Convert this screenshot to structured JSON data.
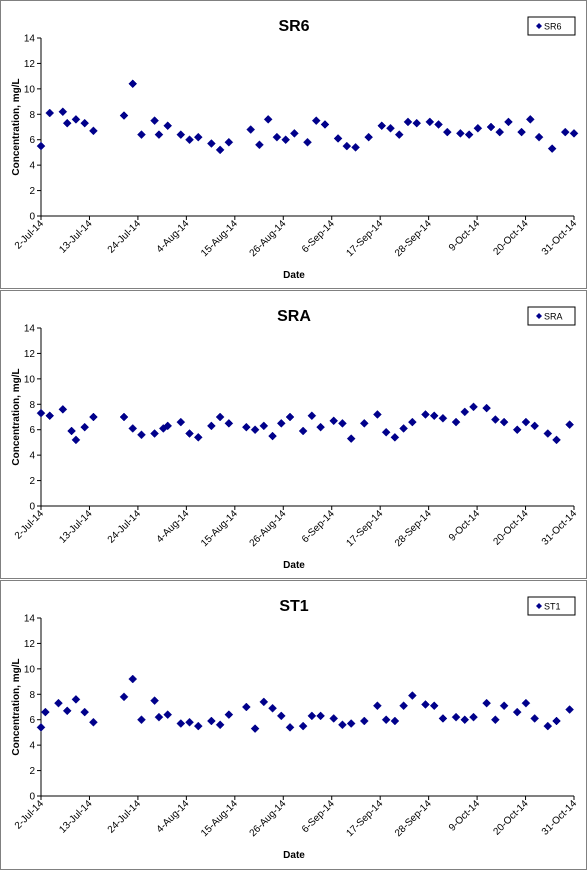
{
  "chart_data": [
    {
      "type": "scatter",
      "title": "SR6",
      "xlabel": "Date",
      "ylabel": "Concentration, mg/L",
      "ylim": [
        0,
        14
      ],
      "yticks": [
        0,
        2,
        4,
        6,
        8,
        10,
        12,
        14
      ],
      "xlim": [
        "2014-07-02",
        "2014-11-01"
      ],
      "xtick_labels": [
        "2-Jul-14",
        "13-Jul-14",
        "24-Jul-14",
        "4-Aug-14",
        "15-Aug-14",
        "26-Aug-14",
        "6-Sep-14",
        "17-Sep-14",
        "28-Sep-14",
        "9-Oct-14",
        "20-Oct-14",
        "31-Oct-14"
      ],
      "grid": false,
      "legend": "top-right",
      "marker_color": "#00008b",
      "series": [
        {
          "name": "SR6",
          "points": [
            [
              "2014-07-02",
              5.5
            ],
            [
              "2014-07-04",
              8.1
            ],
            [
              "2014-07-07",
              8.2
            ],
            [
              "2014-07-08",
              7.3
            ],
            [
              "2014-07-10",
              7.6
            ],
            [
              "2014-07-12",
              7.3
            ],
            [
              "2014-07-14",
              6.7
            ],
            [
              "2014-07-21",
              7.9
            ],
            [
              "2014-07-23",
              10.4
            ],
            [
              "2014-07-25",
              6.4
            ],
            [
              "2014-07-28",
              7.5
            ],
            [
              "2014-07-29",
              6.4
            ],
            [
              "2014-07-31",
              7.1
            ],
            [
              "2014-08-03",
              6.4
            ],
            [
              "2014-08-05",
              6.0
            ],
            [
              "2014-08-07",
              6.2
            ],
            [
              "2014-08-10",
              5.7
            ],
            [
              "2014-08-12",
              5.2
            ],
            [
              "2014-08-14",
              5.8
            ],
            [
              "2014-08-19",
              6.8
            ],
            [
              "2014-08-21",
              5.6
            ],
            [
              "2014-08-23",
              7.6
            ],
            [
              "2014-08-25",
              6.2
            ],
            [
              "2014-08-27",
              6.0
            ],
            [
              "2014-08-29",
              6.5
            ],
            [
              "2014-09-01",
              5.8
            ],
            [
              "2014-09-03",
              7.5
            ],
            [
              "2014-09-05",
              7.2
            ],
            [
              "2014-09-08",
              6.1
            ],
            [
              "2014-09-10",
              5.5
            ],
            [
              "2014-09-12",
              5.4
            ],
            [
              "2014-09-15",
              6.2
            ],
            [
              "2014-09-18",
              7.1
            ],
            [
              "2014-09-20",
              6.9
            ],
            [
              "2014-09-22",
              6.4
            ],
            [
              "2014-09-24",
              7.4
            ],
            [
              "2014-09-26",
              7.3
            ],
            [
              "2014-09-29",
              7.4
            ],
            [
              "2014-10-01",
              7.2
            ],
            [
              "2014-10-03",
              6.6
            ],
            [
              "2014-10-06",
              6.5
            ],
            [
              "2014-10-08",
              6.4
            ],
            [
              "2014-10-10",
              6.9
            ],
            [
              "2014-10-13",
              7.0
            ],
            [
              "2014-10-15",
              6.6
            ],
            [
              "2014-10-17",
              7.4
            ],
            [
              "2014-10-20",
              6.6
            ],
            [
              "2014-10-22",
              7.6
            ],
            [
              "2014-10-24",
              6.2
            ],
            [
              "2014-10-27",
              5.3
            ],
            [
              "2014-10-30",
              6.6
            ],
            [
              "2014-11-01",
              6.5
            ]
          ]
        }
      ]
    },
    {
      "type": "scatter",
      "title": "SRA",
      "xlabel": "Date",
      "ylabel": "Concentration, mg/L",
      "ylim": [
        0,
        14
      ],
      "yticks": [
        0,
        2,
        4,
        6,
        8,
        10,
        12,
        14
      ],
      "xlim": [
        "2014-07-02",
        "2014-11-01"
      ],
      "xtick_labels": [
        "2-Jul-14",
        "13-Jul-14",
        "24-Jul-14",
        "4-Aug-14",
        "15-Aug-14",
        "26-Aug-14",
        "6-Sep-14",
        "17-Sep-14",
        "28-Sep-14",
        "9-Oct-14",
        "20-Oct-14",
        "31-Oct-14"
      ],
      "grid": false,
      "legend": "top-right",
      "marker_color": "#00008b",
      "series": [
        {
          "name": "SRA",
          "points": [
            [
              "2014-07-02",
              7.3
            ],
            [
              "2014-07-04",
              7.1
            ],
            [
              "2014-07-07",
              7.6
            ],
            [
              "2014-07-09",
              5.9
            ],
            [
              "2014-07-10",
              5.2
            ],
            [
              "2014-07-12",
              6.2
            ],
            [
              "2014-07-14",
              7.0
            ],
            [
              "2014-07-21",
              7.0
            ],
            [
              "2014-07-23",
              6.1
            ],
            [
              "2014-07-25",
              5.6
            ],
            [
              "2014-07-28",
              5.7
            ],
            [
              "2014-07-30",
              6.1
            ],
            [
              "2014-07-31",
              6.3
            ],
            [
              "2014-08-03",
              6.6
            ],
            [
              "2014-08-05",
              5.7
            ],
            [
              "2014-08-07",
              5.4
            ],
            [
              "2014-08-10",
              6.3
            ],
            [
              "2014-08-12",
              7.0
            ],
            [
              "2014-08-14",
              6.5
            ],
            [
              "2014-08-18",
              6.2
            ],
            [
              "2014-08-20",
              6.0
            ],
            [
              "2014-08-22",
              6.3
            ],
            [
              "2014-08-24",
              5.5
            ],
            [
              "2014-08-26",
              6.5
            ],
            [
              "2014-08-28",
              7.0
            ],
            [
              "2014-08-31",
              5.9
            ],
            [
              "2014-09-02",
              7.1
            ],
            [
              "2014-09-04",
              6.2
            ],
            [
              "2014-09-07",
              6.7
            ],
            [
              "2014-09-09",
              6.5
            ],
            [
              "2014-09-11",
              5.3
            ],
            [
              "2014-09-14",
              6.5
            ],
            [
              "2014-09-17",
              7.2
            ],
            [
              "2014-09-19",
              5.8
            ],
            [
              "2014-09-21",
              5.4
            ],
            [
              "2014-09-23",
              6.1
            ],
            [
              "2014-09-25",
              6.6
            ],
            [
              "2014-09-28",
              7.2
            ],
            [
              "2014-09-30",
              7.1
            ],
            [
              "2014-10-02",
              6.9
            ],
            [
              "2014-10-05",
              6.6
            ],
            [
              "2014-10-07",
              7.4
            ],
            [
              "2014-10-09",
              7.8
            ],
            [
              "2014-10-12",
              7.7
            ],
            [
              "2014-10-14",
              6.8
            ],
            [
              "2014-10-16",
              6.6
            ],
            [
              "2014-10-19",
              6.0
            ],
            [
              "2014-10-21",
              6.6
            ],
            [
              "2014-10-23",
              6.3
            ],
            [
              "2014-10-26",
              5.7
            ],
            [
              "2014-10-28",
              5.2
            ],
            [
              "2014-10-31",
              6.4
            ]
          ]
        }
      ]
    },
    {
      "type": "scatter",
      "title": "ST1",
      "xlabel": "Date",
      "ylabel": "Concentration, mg/L",
      "ylim": [
        0,
        14
      ],
      "yticks": [
        0,
        2,
        4,
        6,
        8,
        10,
        12,
        14
      ],
      "xlim": [
        "2014-07-02",
        "2014-11-01"
      ],
      "xtick_labels": [
        "2-Jul-14",
        "13-Jul-14",
        "24-Jul-14",
        "4-Aug-14",
        "15-Aug-14",
        "26-Aug-14",
        "6-Sep-14",
        "17-Sep-14",
        "28-Sep-14",
        "9-Oct-14",
        "20-Oct-14",
        "31-Oct-14"
      ],
      "grid": false,
      "legend": "top-right",
      "marker_color": "#00008b",
      "series": [
        {
          "name": "ST1",
          "points": [
            [
              "2014-07-02",
              5.4
            ],
            [
              "2014-07-03",
              6.6
            ],
            [
              "2014-07-06",
              7.3
            ],
            [
              "2014-07-08",
              6.7
            ],
            [
              "2014-07-10",
              7.6
            ],
            [
              "2014-07-12",
              6.6
            ],
            [
              "2014-07-14",
              5.8
            ],
            [
              "2014-07-21",
              7.8
            ],
            [
              "2014-07-23",
              9.2
            ],
            [
              "2014-07-25",
              6.0
            ],
            [
              "2014-07-28",
              7.5
            ],
            [
              "2014-07-29",
              6.2
            ],
            [
              "2014-07-31",
              6.4
            ],
            [
              "2014-08-03",
              5.7
            ],
            [
              "2014-08-05",
              5.8
            ],
            [
              "2014-08-07",
              5.5
            ],
            [
              "2014-08-10",
              5.9
            ],
            [
              "2014-08-12",
              5.6
            ],
            [
              "2014-08-14",
              6.4
            ],
            [
              "2014-08-18",
              7.0
            ],
            [
              "2014-08-20",
              5.3
            ],
            [
              "2014-08-22",
              7.4
            ],
            [
              "2014-08-24",
              6.9
            ],
            [
              "2014-08-26",
              6.3
            ],
            [
              "2014-08-28",
              5.4
            ],
            [
              "2014-08-31",
              5.5
            ],
            [
              "2014-09-02",
              6.3
            ],
            [
              "2014-09-04",
              6.3
            ],
            [
              "2014-09-07",
              6.1
            ],
            [
              "2014-09-09",
              5.6
            ],
            [
              "2014-09-11",
              5.7
            ],
            [
              "2014-09-14",
              5.9
            ],
            [
              "2014-09-17",
              7.1
            ],
            [
              "2014-09-19",
              6.0
            ],
            [
              "2014-09-21",
              5.9
            ],
            [
              "2014-09-23",
              7.1
            ],
            [
              "2014-09-25",
              7.9
            ],
            [
              "2014-09-28",
              7.2
            ],
            [
              "2014-09-30",
              7.1
            ],
            [
              "2014-10-02",
              6.1
            ],
            [
              "2014-10-05",
              6.2
            ],
            [
              "2014-10-07",
              6.0
            ],
            [
              "2014-10-09",
              6.2
            ],
            [
              "2014-10-12",
              7.3
            ],
            [
              "2014-10-14",
              6.0
            ],
            [
              "2014-10-16",
              7.1
            ],
            [
              "2014-10-19",
              6.6
            ],
            [
              "2014-10-21",
              7.3
            ],
            [
              "2014-10-23",
              6.1
            ],
            [
              "2014-10-26",
              5.5
            ],
            [
              "2014-10-28",
              5.9
            ],
            [
              "2014-10-31",
              6.8
            ]
          ]
        }
      ]
    }
  ]
}
